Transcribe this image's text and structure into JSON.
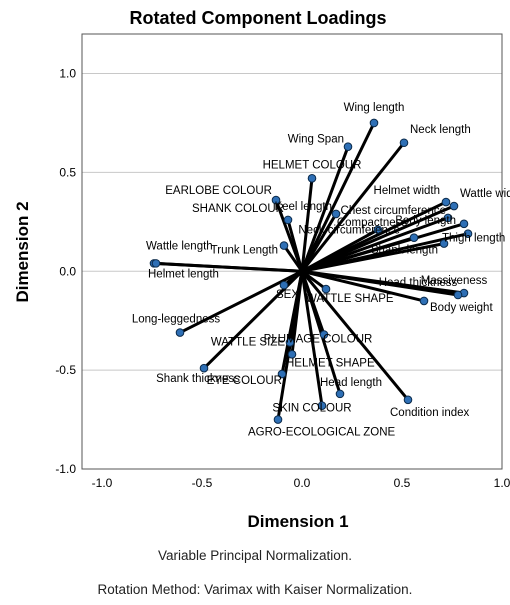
{
  "chart_data": {
    "type": "scatter",
    "title": "Rotated Component Loadings",
    "xlabel": "Dimension 1",
    "ylabel": "Dimension 2",
    "xlim": [
      -1.1,
      1.0
    ],
    "ylim": [
      -1.0,
      1.2
    ],
    "xticks": [
      "-1.0",
      "-0.5",
      "0.0",
      "0.5",
      "1.0"
    ],
    "yticks": [
      "-1.0",
      "-0.5",
      "0.0",
      "0.5",
      "1.0"
    ],
    "grid": "horizontal",
    "vectors_from_origin": true,
    "point_color": "#2e6fb5",
    "line_color": "#000000",
    "points": [
      {
        "label": "Wing length",
        "x": 0.36,
        "y": 0.75
      },
      {
        "label": "Neck length",
        "x": 0.51,
        "y": 0.65
      },
      {
        "label": "Wing Span",
        "x": 0.23,
        "y": 0.63
      },
      {
        "label": "HELMET COLOUR",
        "x": 0.05,
        "y": 0.47
      },
      {
        "label": "Wattle width",
        "x": 0.76,
        "y": 0.33
      },
      {
        "label": "Helmet width",
        "x": 0.72,
        "y": 0.35
      },
      {
        "label": "EARLOBE COLOUR",
        "x": -0.13,
        "y": 0.36
      },
      {
        "label": "Chest circumference",
        "x": 0.73,
        "y": 0.27
      },
      {
        "label": "Keel length",
        "x": 0.17,
        "y": 0.29
      },
      {
        "label": "Compactness",
        "x": 0.38,
        "y": 0.21
      },
      {
        "label": "Body length",
        "x": 0.81,
        "y": 0.24
      },
      {
        "label": "SHANK COLOUR",
        "x": -0.07,
        "y": 0.26
      },
      {
        "label": "Neck circumference",
        "x": 0.56,
        "y": 0.17
      },
      {
        "label": "Thigh length",
        "x": 0.83,
        "y": 0.19
      },
      {
        "label": "Wattle length",
        "x": -0.74,
        "y": 0.04
      },
      {
        "label": "Trunk Length",
        "x": -0.09,
        "y": 0.13
      },
      {
        "label": "Shank length",
        "x": 0.71,
        "y": 0.14
      },
      {
        "label": "Helmet length",
        "x": -0.73,
        "y": 0.04
      },
      {
        "label": "Massiveness",
        "x": 0.81,
        "y": -0.11
      },
      {
        "label": "SEX",
        "x": -0.09,
        "y": -0.07
      },
      {
        "label": "WATTLE SHAPE",
        "x": 0.12,
        "y": -0.09
      },
      {
        "label": "Head thickness",
        "x": 0.78,
        "y": -0.12
      },
      {
        "label": "Body weight",
        "x": 0.61,
        "y": -0.15
      },
      {
        "label": "Long-leggedness",
        "x": -0.61,
        "y": -0.31
      },
      {
        "label": "PLUMAGE COLOUR",
        "x": 0.11,
        "y": -0.32
      },
      {
        "label": "WATTLE SIZE",
        "x": -0.06,
        "y": -0.36
      },
      {
        "label": "HELMET SHAPE",
        "x": -0.05,
        "y": -0.42
      },
      {
        "label": "Shank thickness",
        "x": -0.49,
        "y": -0.49
      },
      {
        "label": "EYE COLOUR",
        "x": -0.1,
        "y": -0.52
      },
      {
        "label": "Head length",
        "x": 0.19,
        "y": -0.62
      },
      {
        "label": "Condition index",
        "x": 0.53,
        "y": -0.65
      },
      {
        "label": "SKIN COLOUR",
        "x": 0.1,
        "y": -0.68
      },
      {
        "label": "AGRO-ECOLOGICAL ZONE",
        "x": -0.12,
        "y": -0.75
      }
    ]
  },
  "footnotes": {
    "normalization": "Variable Principal Normalization.",
    "rotation": "Rotation Method: Varimax with Kaiser Normalization."
  }
}
